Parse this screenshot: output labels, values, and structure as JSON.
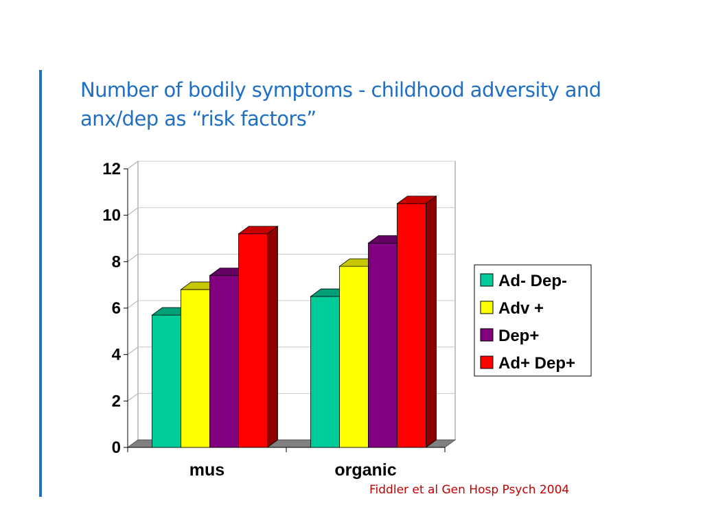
{
  "slide": {
    "title_line1": "Number of bodily symptoms - childhood adversity and",
    "title_line2": "anx/dep as “risk factors”",
    "citation": "Fiddler et al Gen Hosp Psych 2004"
  },
  "chart_data": {
    "type": "bar",
    "categories": [
      "mus",
      "organic"
    ],
    "series": [
      {
        "name": "Ad- Dep-",
        "values": [
          5.7,
          6.5
        ],
        "color": "#00CC99"
      },
      {
        "name": "Adv +",
        "values": [
          6.8,
          7.8
        ],
        "color": "#FFFF00"
      },
      {
        "name": "Dep+",
        "values": [
          7.4,
          8.8
        ],
        "color": "#800080"
      },
      {
        "name": "Ad+ Dep+",
        "values": [
          9.2,
          10.5
        ],
        "color": "#FF0000"
      }
    ],
    "yticks": [
      "0",
      "2",
      "4",
      "6",
      "8",
      "10",
      "12"
    ],
    "ylim": [
      0,
      12
    ],
    "grid": true,
    "legend": "right",
    "three_d": true
  }
}
